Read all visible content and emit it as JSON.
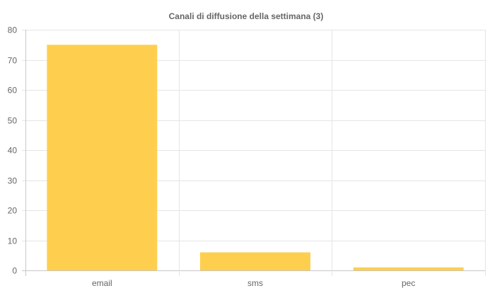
{
  "chart_data": {
    "type": "bar",
    "title": "Canali di diffusione della settimana (3)",
    "categories": [
      "email",
      "sms",
      "pec"
    ],
    "values": [
      75,
      6,
      1
    ],
    "ylim": [
      0,
      80
    ],
    "yticks": [
      0,
      10,
      20,
      30,
      40,
      50,
      60,
      70,
      80
    ],
    "grid": true,
    "legend": "none",
    "bar_color": "#fecf4f",
    "grid_color": "#e5e5e5"
  }
}
